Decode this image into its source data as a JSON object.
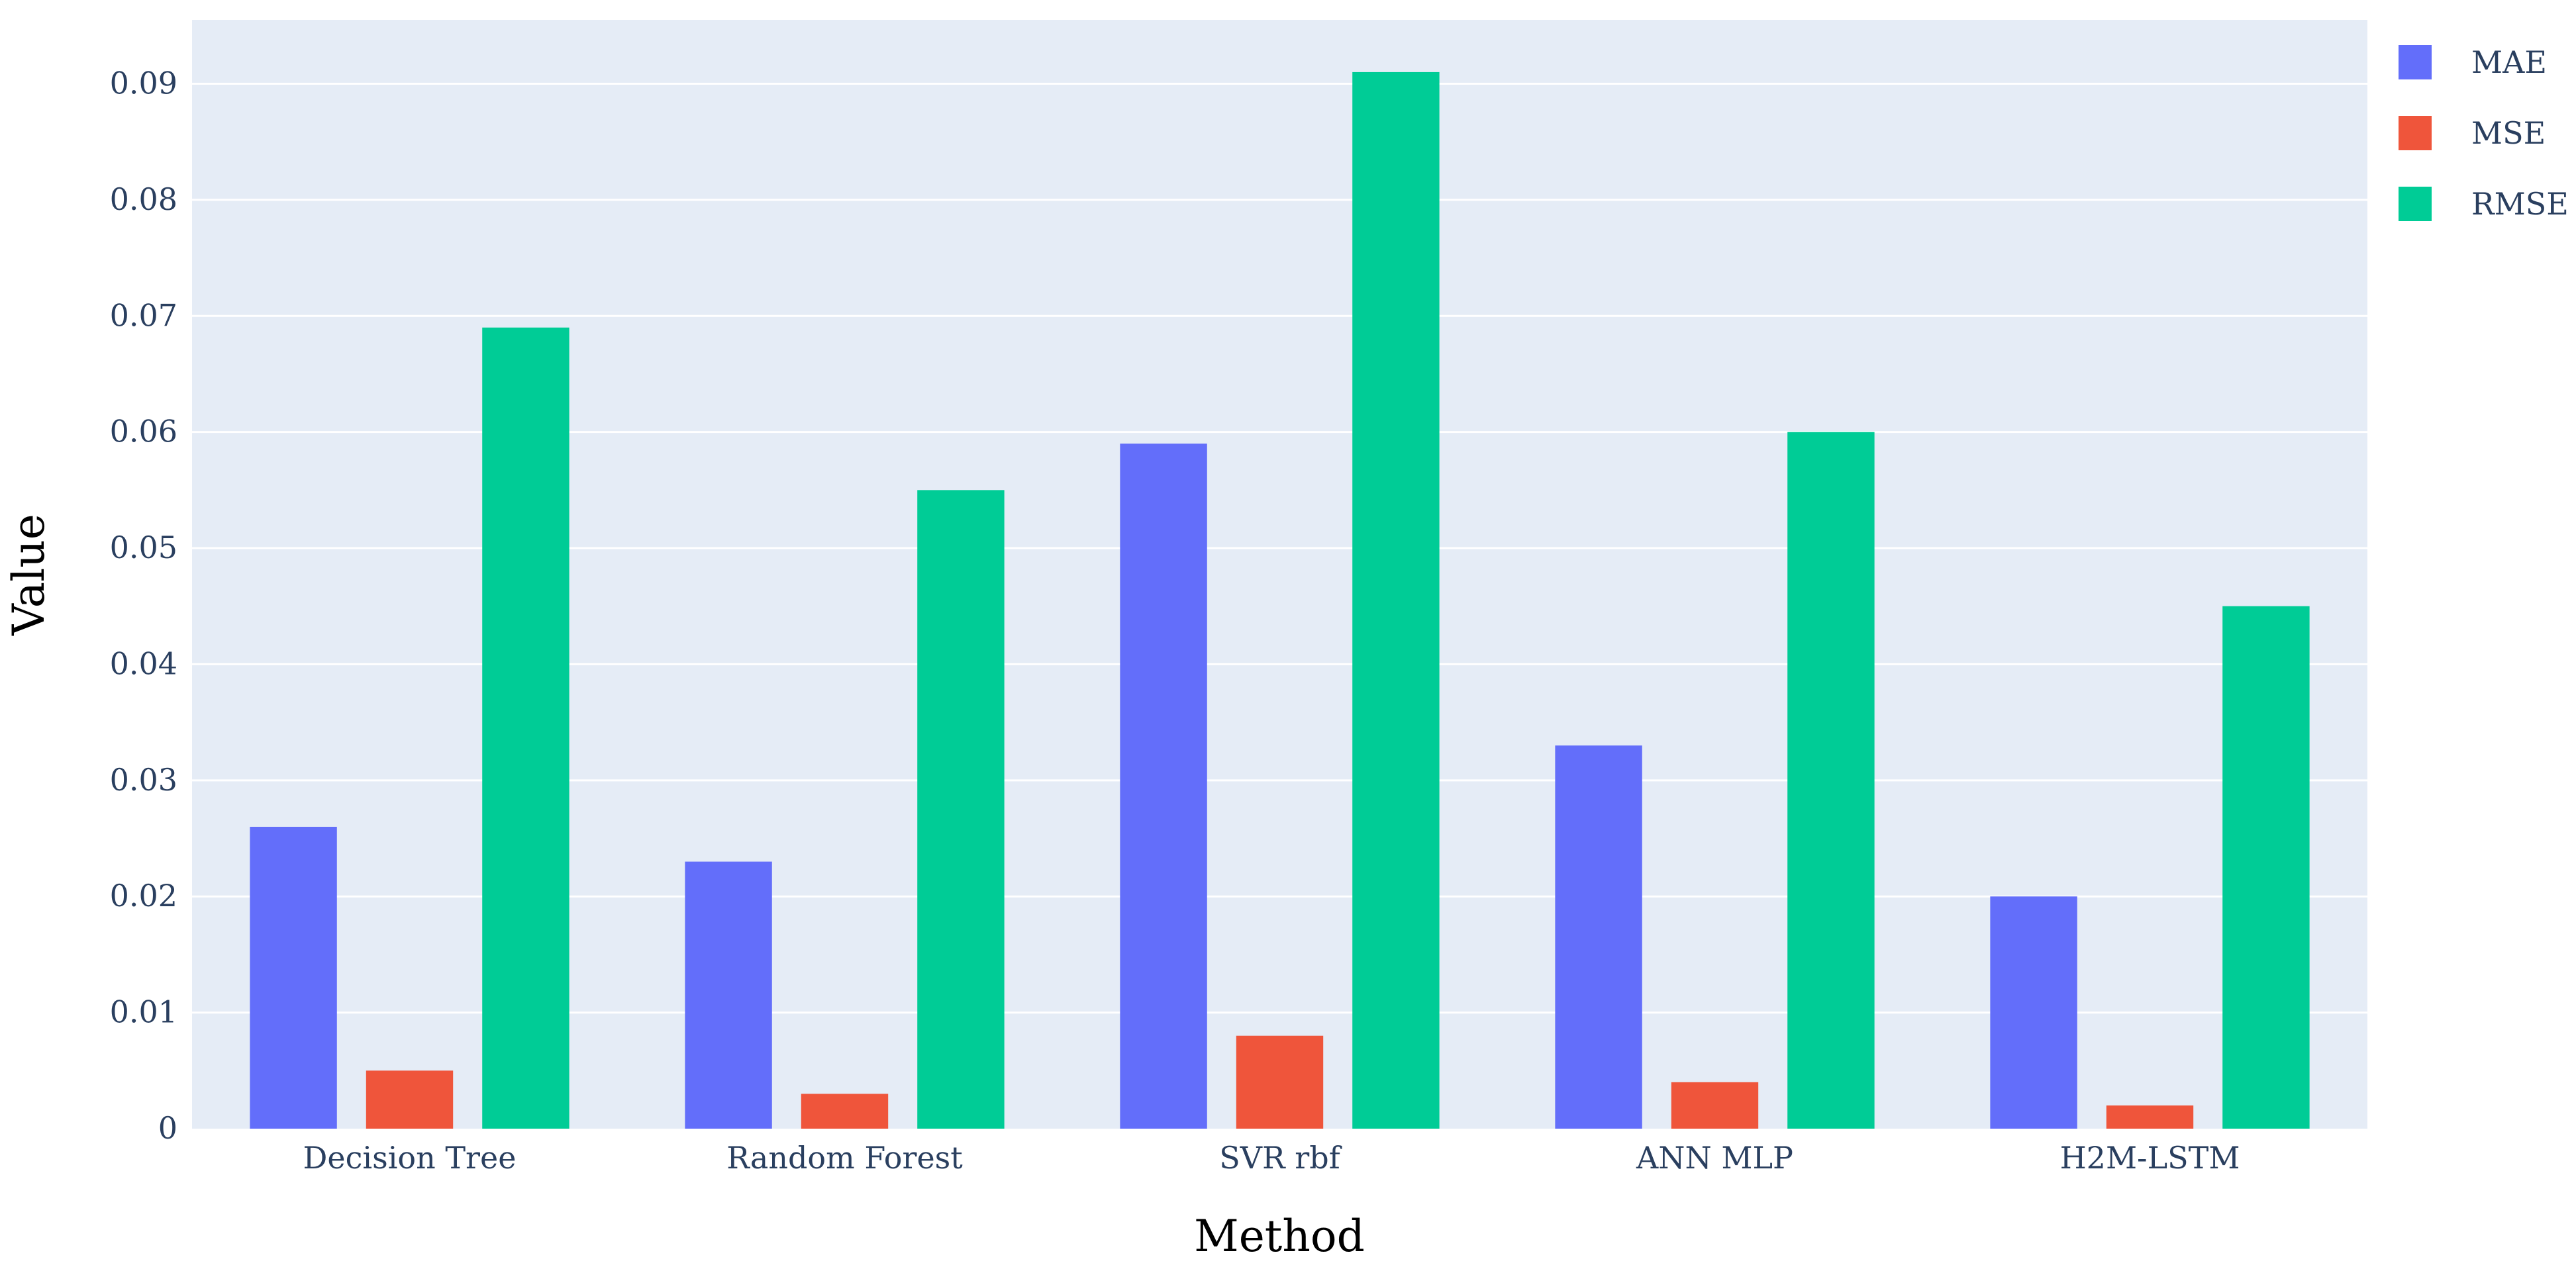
{
  "chart_data": {
    "type": "bar",
    "title": "",
    "xlabel": "Method",
    "ylabel": "Value",
    "categories": [
      "Decision Tree",
      "Random Forest",
      "SVR rbf",
      "ANN MLP",
      "H2M-LSTM"
    ],
    "series": [
      {
        "name": "MAE",
        "color": "#636efa",
        "values": [
          0.026,
          0.023,
          0.059,
          0.033,
          0.02
        ]
      },
      {
        "name": "MSE",
        "color": "#ef553b",
        "values": [
          0.005,
          0.003,
          0.008,
          0.004,
          0.002
        ]
      },
      {
        "name": "RMSE",
        "color": "#00cc96",
        "values": [
          0.069,
          0.055,
          0.091,
          0.06,
          0.045
        ]
      }
    ],
    "ylim": [
      0,
      0.0955
    ],
    "yticks": [
      0,
      0.01,
      0.02,
      0.03,
      0.04,
      0.05,
      0.06,
      0.07,
      0.08,
      0.09
    ],
    "ytick_labels": [
      "0",
      "0.01",
      "0.02",
      "0.03",
      "0.04",
      "0.05",
      "0.06",
      "0.07",
      "0.08",
      "0.09"
    ],
    "grid": true,
    "legend_position": "top-right",
    "plot_background": "#e5ecf6"
  }
}
